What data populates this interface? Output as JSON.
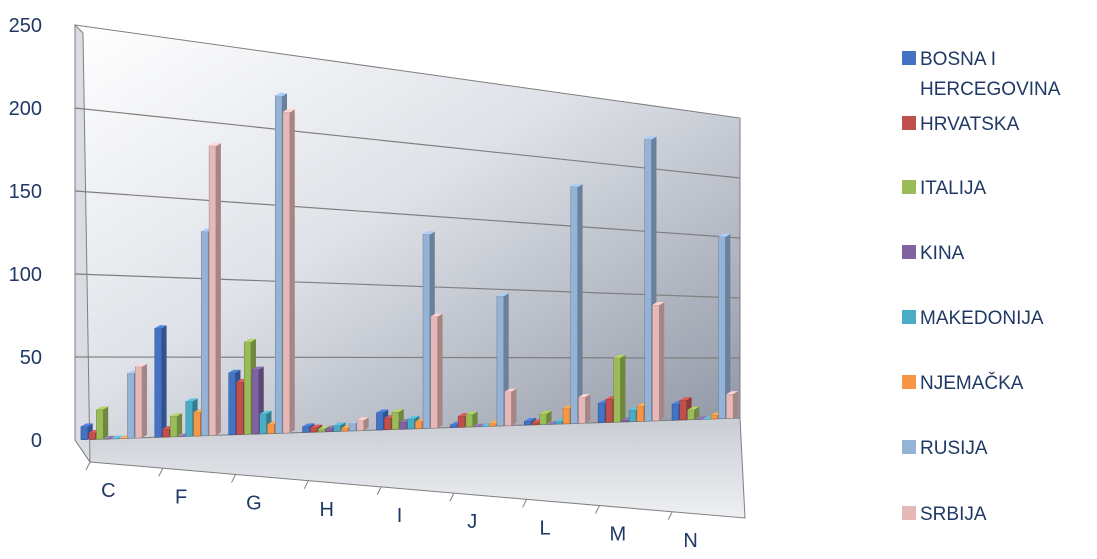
{
  "chart_data": {
    "type": "bar",
    "title": "",
    "xlabel": "",
    "ylabel": "",
    "ylim": [
      0,
      250
    ],
    "yticks": [
      0,
      50,
      100,
      150,
      200,
      250
    ],
    "categories": [
      "C",
      "F",
      "G",
      "H",
      "I",
      "J",
      "L",
      "M",
      "N"
    ],
    "legend_position": "right",
    "grid": true,
    "style": "3d-clustered-column",
    "series": [
      {
        "name": "BOSNA I HERCEGOVINA",
        "color": "#4472c4",
        "values": [
          8,
          68,
          40,
          4,
          12,
          2,
          3,
          15,
          13
        ]
      },
      {
        "name": "HRVATSKA",
        "color": "#c0504d",
        "values": [
          4,
          5,
          34,
          3,
          8,
          8,
          2,
          18,
          16
        ]
      },
      {
        "name": "ITALIJA",
        "color": "#9bbb59",
        "values": [
          18,
          13,
          60,
          2,
          12,
          9,
          8,
          50,
          8
        ]
      },
      {
        "name": "KINA",
        "color": "#8064a2",
        "values": [
          0,
          0,
          42,
          2,
          5,
          0,
          0,
          1,
          0
        ]
      },
      {
        "name": "MAKEDONIJA",
        "color": "#4bacc6",
        "values": [
          0,
          22,
          13,
          4,
          7,
          0,
          2,
          9,
          0
        ]
      },
      {
        "name": "NJEMAČKA",
        "color": "#f79646",
        "values": [
          0,
          15,
          6,
          2,
          5,
          2,
          12,
          12,
          3
        ]
      },
      {
        "name": "RUSIJA",
        "color": "#95b3d7",
        "values": [
          40,
          130,
          222,
          5,
          137,
          95,
          180,
          223,
          150
        ]
      },
      {
        "name": "SRBIJA",
        "color": "#e6b9b8",
        "values": [
          44,
          185,
          212,
          7,
          79,
          25,
          20,
          92,
          20
        ]
      }
    ]
  }
}
